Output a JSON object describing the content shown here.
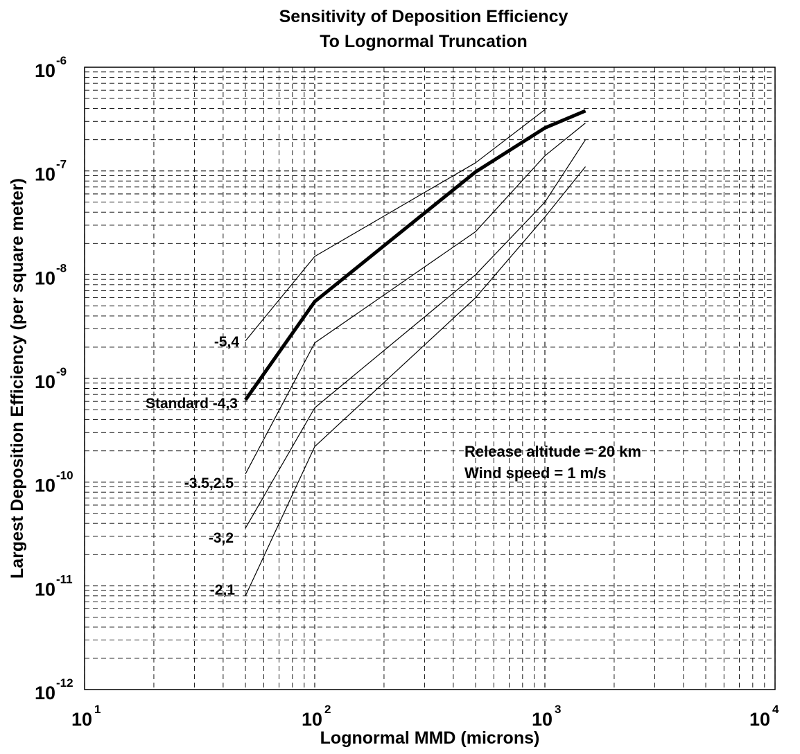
{
  "chart_data": {
    "type": "line",
    "title": "Sensitivity of Deposition Efficiency",
    "subtitle": "To Lognormal Truncation",
    "xlabel": "Lognormal MMD (microns)",
    "ylabel": "Largest Deposition Efficiency (per square meter)",
    "xscale": "log",
    "yscale": "log",
    "xlim": [
      10,
      10000
    ],
    "ylim": [
      1e-12,
      1e-06
    ],
    "grid": true,
    "x_ticks": [
      {
        "base": "10",
        "exp": "1",
        "value": 10
      },
      {
        "base": "10",
        "exp": "2",
        "value": 100
      },
      {
        "base": "10",
        "exp": "3",
        "value": 1000
      },
      {
        "base": "10",
        "exp": "4",
        "value": 10000
      }
    ],
    "y_ticks": [
      {
        "base": "10",
        "exp": "-6",
        "value": 1e-06
      },
      {
        "base": "10",
        "exp": "-7",
        "value": 1e-07
      },
      {
        "base": "10",
        "exp": "-8",
        "value": 1e-08
      },
      {
        "base": "10",
        "exp": "-9",
        "value": 1e-09
      },
      {
        "base": "10",
        "exp": "-10",
        "value": 1e-10
      },
      {
        "base": "10",
        "exp": "-11",
        "value": 1e-11
      },
      {
        "base": "10",
        "exp": "-12",
        "value": 1e-12
      }
    ],
    "series": [
      {
        "name": "-5,4",
        "thick": false,
        "x": [
          50,
          100,
          500,
          1000
        ],
        "y": [
          2.3e-09,
          1.5e-08,
          1.2e-07,
          3.9e-07
        ]
      },
      {
        "name": "Standard -4,3",
        "thick": true,
        "x": [
          50,
          100,
          200,
          500,
          1000,
          1500
        ],
        "y": [
          6.2e-10,
          5.5e-09,
          1.9e-08,
          9.8e-08,
          2.6e-07,
          3.8e-07
        ]
      },
      {
        "name": "-3.5,2.5",
        "thick": false,
        "x": [
          50,
          100,
          500,
          1000,
          1500
        ],
        "y": [
          1.2e-10,
          2.2e-09,
          2.6e-08,
          1.4e-07,
          2.9e-07
        ]
      },
      {
        "name": "-3,2",
        "thick": false,
        "x": [
          50,
          100,
          500,
          1000,
          1500
        ],
        "y": [
          3.6e-11,
          5.2e-10,
          1e-08,
          5e-08,
          2e-07
        ]
      },
      {
        "name": "-2,1",
        "thick": false,
        "x": [
          50,
          100,
          500,
          1000,
          1500
        ],
        "y": [
          8e-12,
          2.2e-10,
          6e-09,
          3.6e-08,
          1.1e-07
        ]
      }
    ],
    "annotations": [
      "Release altitude = 20 km",
      "Wind speed = 1 m/s"
    ]
  }
}
